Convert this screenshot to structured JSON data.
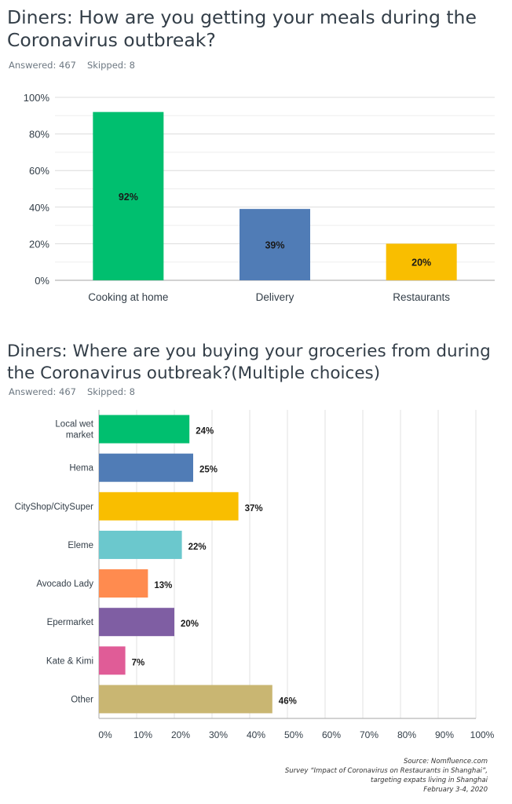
{
  "q1": {
    "title": "Diners: How are you getting your meals during the Coronavirus outbreak?",
    "answered": "Answered: 467",
    "skipped": "Skipped: 8"
  },
  "q2": {
    "title": "Diners: Where are you buying your groceries from during the Coronavirus outbreak?(Multiple choices)",
    "answered": "Answered: 467",
    "skipped": "Skipped: 8"
  },
  "source": {
    "line1": "Source: Nomfluence.com",
    "line2": "Survey “Impact of Coronavirus on Restaurants in Shanghai”,",
    "line3": "targeting expats living in Shanghai",
    "line4": "February 3-4, 2020"
  },
  "chart_data": [
    {
      "type": "bar",
      "orientation": "vertical",
      "categories": [
        "Cooking at home",
        "Delivery",
        "Restaurants"
      ],
      "values": [
        92,
        39,
        20
      ],
      "data_labels": [
        "92%",
        "39%",
        "20%"
      ],
      "colors": [
        "#00bf6f",
        "#507cb6",
        "#f9be00"
      ],
      "yticks": [
        "0%",
        "20%",
        "40%",
        "60%",
        "80%",
        "100%"
      ],
      "ylim": [
        0,
        100
      ],
      "grid": true
    },
    {
      "type": "bar",
      "orientation": "horizontal",
      "categories": [
        "Local wet market",
        "Hema",
        "CityShop/CitySuper",
        "Eleme",
        "Avocado Lady",
        "Epermarket",
        "Kate & Kimi",
        "Other"
      ],
      "values": [
        24,
        25,
        37,
        22,
        13,
        20,
        7,
        46
      ],
      "data_labels": [
        "24%",
        "25%",
        "37%",
        "22%",
        "13%",
        "20%",
        "7%",
        "46%"
      ],
      "colors": [
        "#00bf6f",
        "#507cb6",
        "#f9be00",
        "#6bc8cd",
        "#ff8b4f",
        "#7f5ea3",
        "#e05c97",
        "#c9b672"
      ],
      "xticks": [
        "0%",
        "10%",
        "20%",
        "30%",
        "40%",
        "50%",
        "60%",
        "70%",
        "80%",
        "90%",
        "100%"
      ],
      "xlim": [
        0,
        100
      ],
      "grid": true
    }
  ]
}
